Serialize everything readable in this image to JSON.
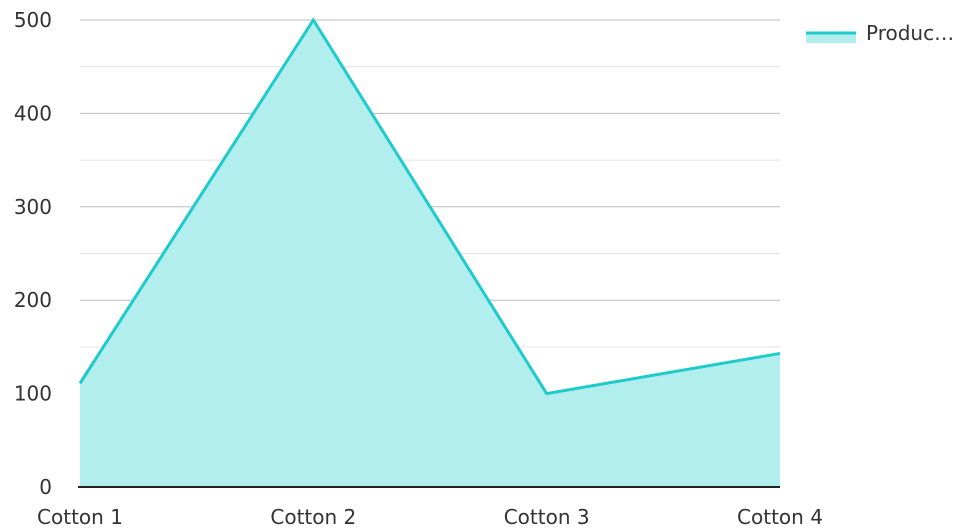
{
  "chart_data": {
    "type": "area",
    "categories": [
      "Cotton 1",
      "Cotton 2",
      "Cotton 3",
      "Cotton 4"
    ],
    "series": [
      {
        "name": "Produc…",
        "values": [
          111,
          500,
          100,
          143
        ]
      }
    ],
    "yticks": [
      0,
      100,
      200,
      300,
      400,
      500
    ],
    "ylim": [
      0,
      500
    ],
    "grid": true,
    "legend": "top-right",
    "colors": {
      "line": "#1ecbcb",
      "fill": "#b2eeed",
      "grid_major": "#bdbdbd",
      "grid_minor": "#e3e3e3",
      "axis": "#222222"
    }
  }
}
